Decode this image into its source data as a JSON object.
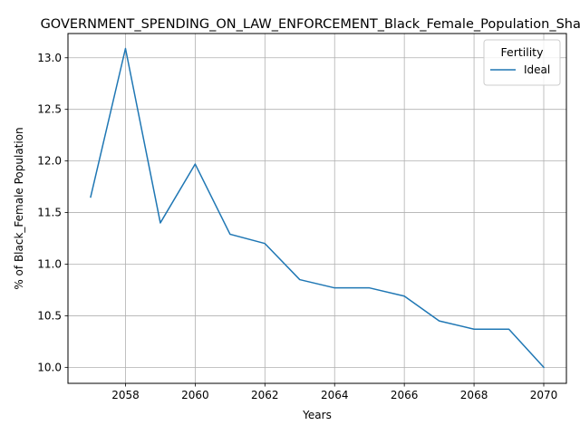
{
  "chart_data": {
    "type": "line",
    "title": "GOVERNMENT_SPENDING_ON_LAW_ENFORCEMENT_Black_Female_Population_Share",
    "xlabel": "Years",
    "ylabel": "% of Black_Female Population",
    "xlim": [
      2056.35,
      2070.65
    ],
    "ylim": [
      9.845,
      13.235
    ],
    "x_ticks": [
      2058,
      2060,
      2062,
      2064,
      2066,
      2068,
      2070
    ],
    "y_ticks": [
      10.0,
      10.5,
      11.0,
      11.5,
      12.0,
      12.5,
      13.0
    ],
    "x_tick_labels": [
      "2058",
      "2060",
      "2062",
      "2064",
      "2066",
      "2068",
      "2070"
    ],
    "y_tick_labels": [
      "10.0",
      "10.5",
      "11.0",
      "11.5",
      "12.0",
      "12.5",
      "13.0"
    ],
    "grid": true,
    "legend": {
      "title": "Fertility",
      "position": "top-right"
    },
    "series": [
      {
        "name": "Ideal",
        "color": "#1f77b4",
        "x": [
          2057,
          2058,
          2059,
          2060,
          2061,
          2062,
          2063,
          2064,
          2065,
          2066,
          2067,
          2068,
          2069,
          2070
        ],
        "y": [
          11.65,
          13.09,
          11.4,
          11.97,
          11.29,
          11.2,
          10.85,
          10.77,
          10.77,
          10.69,
          10.45,
          10.37,
          10.37,
          10.0
        ]
      }
    ]
  }
}
